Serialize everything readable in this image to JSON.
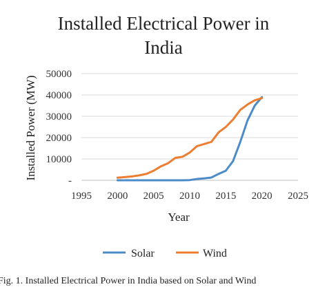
{
  "chart_data": {
    "type": "line",
    "title_lines": [
      "Installed Electrical Power in",
      "India"
    ],
    "xlabel": "Year",
    "ylabel": "Installed Power (MW)",
    "xlim": [
      1995,
      2025
    ],
    "ylim": [
      0,
      50000
    ],
    "x_ticks": [
      "1995",
      "2000",
      "2005",
      "2010",
      "2015",
      "2020",
      "2025"
    ],
    "y_ticks": [
      "-",
      "10000",
      "20000",
      "30000",
      "40000",
      "50000"
    ],
    "grid": "horizontal",
    "legend_position": "bottom",
    "series": [
      {
        "name": "Solar",
        "color": "#4a8bc8",
        "points": [
          [
            2000,
            0
          ],
          [
            2001,
            0
          ],
          [
            2002,
            0
          ],
          [
            2003,
            0
          ],
          [
            2004,
            0
          ],
          [
            2005,
            0
          ],
          [
            2006,
            0
          ],
          [
            2007,
            0
          ],
          [
            2008,
            0
          ],
          [
            2009,
            0
          ],
          [
            2010,
            100
          ],
          [
            2011,
            600
          ],
          [
            2012,
            900
          ],
          [
            2013,
            1300
          ],
          [
            2014,
            3000
          ],
          [
            2015,
            4500
          ],
          [
            2016,
            9000
          ],
          [
            2017,
            18000
          ],
          [
            2018,
            28000
          ],
          [
            2019,
            35000
          ],
          [
            2020,
            39000
          ]
        ]
      },
      {
        "name": "Wind",
        "color": "#ed7d31",
        "points": [
          [
            2000,
            1200
          ],
          [
            2001,
            1500
          ],
          [
            2002,
            1800
          ],
          [
            2003,
            2300
          ],
          [
            2004,
            3000
          ],
          [
            2005,
            4500
          ],
          [
            2006,
            6500
          ],
          [
            2007,
            8000
          ],
          [
            2008,
            10500
          ],
          [
            2009,
            11000
          ],
          [
            2010,
            13000
          ],
          [
            2011,
            16000
          ],
          [
            2012,
            17000
          ],
          [
            2013,
            18000
          ],
          [
            2014,
            22500
          ],
          [
            2015,
            25000
          ],
          [
            2016,
            28500
          ],
          [
            2017,
            33000
          ],
          [
            2018,
            35500
          ],
          [
            2019,
            37500
          ],
          [
            2020,
            38500
          ]
        ]
      }
    ]
  },
  "caption": "Fig. 1.   Installed Electrical Power in India based on Solar and Wind"
}
